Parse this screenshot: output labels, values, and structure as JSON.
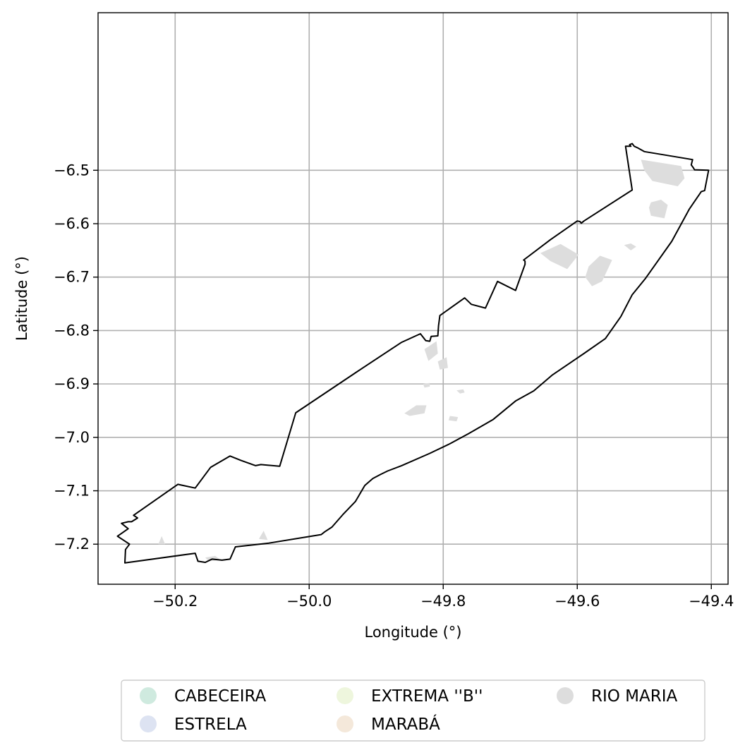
{
  "chart_data": {
    "type": "map",
    "xlabel": "Longitude (°)",
    "ylabel": "Latitude (°)",
    "xlim": [
      -50.315,
      -49.375
    ],
    "ylim": [
      -7.275,
      -6.205
    ],
    "xticks": [
      -50.2,
      -50.0,
      -49.8,
      -49.6,
      -49.4
    ],
    "xtick_labels": [
      "−50.2",
      "−50.0",
      "−49.8",
      "−49.6",
      "−49.4"
    ],
    "yticks": [
      -6.5,
      -6.6,
      -6.7,
      -6.8,
      -6.9,
      -7.0,
      -7.1,
      -7.2
    ],
    "ytick_labels": [
      "−6.5",
      "−6.6",
      "−6.7",
      "−6.8",
      "−6.9",
      "−7.0",
      "−7.1",
      "−7.2"
    ],
    "grid": true,
    "legend_position": "bottom",
    "legend": [
      {
        "name": "CABECEIRA",
        "color": "#cfeadf"
      },
      {
        "name": "ESTRELA",
        "color": "#dde3f2"
      },
      {
        "name": "EXTREMA ''B''",
        "color": "#eef6dd"
      },
      {
        "name": "MARABÁ",
        "color": "#f4e8da"
      },
      {
        "name": "RIO MARIA",
        "color": "#dddddd"
      }
    ],
    "boundary": [
      [
        -50.275,
        -7.235
      ],
      [
        -50.17,
        -7.217
      ],
      [
        -50.166,
        -7.232
      ],
      [
        -50.155,
        -7.234
      ],
      [
        -50.145,
        -7.228
      ],
      [
        -50.13,
        -7.23
      ],
      [
        -50.118,
        -7.228
      ],
      [
        -50.11,
        -7.205
      ],
      [
        -50.06,
        -7.198
      ],
      [
        -49.982,
        -7.182
      ],
      [
        -49.977,
        -7.177
      ],
      [
        -49.966,
        -7.168
      ],
      [
        -49.95,
        -7.145
      ],
      [
        -49.931,
        -7.12
      ],
      [
        -49.917,
        -7.09
      ],
      [
        -49.905,
        -7.077
      ],
      [
        -49.893,
        -7.069
      ],
      [
        -49.883,
        -7.063
      ],
      [
        -49.862,
        -7.053
      ],
      [
        -49.82,
        -7.03
      ],
      [
        -49.79,
        -7.012
      ],
      [
        -49.762,
        -6.993
      ],
      [
        -49.726,
        -6.967
      ],
      [
        -49.692,
        -6.932
      ],
      [
        -49.665,
        -6.913
      ],
      [
        -49.637,
        -6.883
      ],
      [
        -49.59,
        -6.843
      ],
      [
        -49.558,
        -6.815
      ],
      [
        -49.535,
        -6.774
      ],
      [
        -49.518,
        -6.733
      ],
      [
        -49.498,
        -6.702
      ],
      [
        -49.459,
        -6.633
      ],
      [
        -49.433,
        -6.573
      ],
      [
        -49.415,
        -6.54
      ],
      [
        -49.41,
        -6.538
      ],
      [
        -49.404,
        -6.5
      ],
      [
        -49.425,
        -6.499
      ],
      [
        -49.427,
        -6.495
      ],
      [
        -49.43,
        -6.49
      ],
      [
        -49.428,
        -6.48
      ],
      [
        -49.5,
        -6.465
      ],
      [
        -49.51,
        -6.458
      ],
      [
        -49.515,
        -6.455
      ],
      [
        -49.518,
        -6.45
      ],
      [
        -49.522,
        -6.452
      ],
      [
        -49.52,
        -6.455
      ],
      [
        -49.528,
        -6.455
      ],
      [
        -49.518,
        -6.537
      ],
      [
        -49.59,
        -6.595
      ],
      [
        -49.594,
        -6.599
      ],
      [
        -49.596,
        -6.596
      ],
      [
        -49.6,
        -6.595
      ],
      [
        -49.64,
        -6.63
      ],
      [
        -49.68,
        -6.668
      ],
      [
        -49.678,
        -6.67
      ],
      [
        -49.678,
        -6.676
      ],
      [
        -49.692,
        -6.725
      ],
      [
        -49.719,
        -6.708
      ],
      [
        -49.737,
        -6.758
      ],
      [
        -49.758,
        -6.751
      ],
      [
        -49.768,
        -6.739
      ],
      [
        -49.805,
        -6.772
      ],
      [
        -49.807,
        -6.791
      ],
      [
        -49.808,
        -6.81
      ],
      [
        -49.818,
        -6.811
      ],
      [
        -49.82,
        -6.82
      ],
      [
        -49.826,
        -6.819
      ],
      [
        -49.834,
        -6.806
      ],
      [
        -49.862,
        -6.822
      ],
      [
        -49.92,
        -6.87
      ],
      [
        -50.02,
        -6.954
      ],
      [
        -50.044,
        -7.054
      ],
      [
        -50.072,
        -7.051
      ],
      [
        -50.08,
        -7.053
      ],
      [
        -50.102,
        -7.043
      ],
      [
        -50.118,
        -7.035
      ],
      [
        -50.147,
        -7.056
      ],
      [
        -50.17,
        -7.095
      ],
      [
        -50.196,
        -7.088
      ],
      [
        -50.262,
        -7.146
      ],
      [
        -50.256,
        -7.151
      ],
      [
        -50.265,
        -7.158
      ],
      [
        -50.27,
        -7.158
      ],
      [
        -50.28,
        -7.161
      ],
      [
        -50.27,
        -7.171
      ],
      [
        -50.286,
        -7.185
      ],
      [
        -50.268,
        -7.2
      ],
      [
        -50.274,
        -7.21
      ],
      [
        -50.275,
        -7.235
      ]
    ],
    "areas": [
      {
        "category": "RIO MARIA",
        "coords": [
          [
            -49.505,
            -6.48
          ],
          [
            -49.445,
            -6.492
          ],
          [
            -49.44,
            -6.515
          ],
          [
            -49.45,
            -6.53
          ],
          [
            -49.488,
            -6.52
          ],
          [
            -49.5,
            -6.5
          ]
        ]
      },
      {
        "category": "RIO MARIA",
        "coords": [
          [
            -49.49,
            -6.56
          ],
          [
            -49.475,
            -6.555
          ],
          [
            -49.465,
            -6.565
          ],
          [
            -49.47,
            -6.59
          ],
          [
            -49.49,
            -6.585
          ],
          [
            -49.493,
            -6.57
          ]
        ]
      },
      {
        "category": "RIO MARIA",
        "coords": [
          [
            -49.53,
            -6.64
          ],
          [
            -49.52,
            -6.637
          ],
          [
            -49.512,
            -6.643
          ],
          [
            -49.52,
            -6.65
          ]
        ]
      },
      {
        "category": "RIO MARIA",
        "coords": [
          [
            -49.655,
            -6.655
          ],
          [
            -49.625,
            -6.638
          ],
          [
            -49.598,
            -6.658
          ],
          [
            -49.615,
            -6.685
          ],
          [
            -49.64,
            -6.67
          ]
        ]
      },
      {
        "category": "RIO MARIA",
        "coords": [
          [
            -49.583,
            -6.68
          ],
          [
            -49.566,
            -6.66
          ],
          [
            -49.548,
            -6.668
          ],
          [
            -49.563,
            -6.708
          ],
          [
            -49.578,
            -6.717
          ],
          [
            -49.588,
            -6.7
          ]
        ]
      },
      {
        "category": "RIO MARIA",
        "coords": [
          [
            -49.828,
            -6.835
          ],
          [
            -49.81,
            -6.82
          ],
          [
            -49.808,
            -6.843
          ],
          [
            -49.822,
            -6.857
          ]
        ]
      },
      {
        "category": "RIO MARIA",
        "coords": [
          [
            -49.808,
            -6.858
          ],
          [
            -49.795,
            -6.85
          ],
          [
            -49.793,
            -6.87
          ],
          [
            -49.805,
            -6.873
          ]
        ]
      },
      {
        "category": "RIO MARIA",
        "coords": [
          [
            -49.858,
            -6.955
          ],
          [
            -49.84,
            -6.94
          ],
          [
            -49.825,
            -6.94
          ],
          [
            -49.828,
            -6.955
          ],
          [
            -49.85,
            -6.96
          ]
        ]
      },
      {
        "category": "RIO MARIA",
        "coords": [
          [
            -49.83,
            -6.9
          ],
          [
            -49.82,
            -6.898
          ],
          [
            -49.82,
            -6.905
          ],
          [
            -49.828,
            -6.907
          ]
        ]
      },
      {
        "category": "RIO MARIA",
        "coords": [
          [
            -50.155,
            -7.225
          ],
          [
            -50.14,
            -7.222
          ],
          [
            -50.132,
            -7.23
          ],
          [
            -50.15,
            -7.232
          ]
        ]
      },
      {
        "category": "RIO MARIA",
        "coords": [
          [
            -50.075,
            -7.19
          ],
          [
            -50.068,
            -7.175
          ],
          [
            -50.062,
            -7.192
          ]
        ]
      },
      {
        "category": "RIO MARIA",
        "coords": [
          [
            -50.225,
            -7.2
          ],
          [
            -50.22,
            -7.185
          ],
          [
            -50.215,
            -7.2
          ]
        ]
      },
      {
        "category": "RIO MARIA",
        "coords": [
          [
            -49.78,
            -6.912
          ],
          [
            -49.77,
            -6.91
          ],
          [
            -49.768,
            -6.916
          ],
          [
            -49.775,
            -6.918
          ]
        ]
      },
      {
        "category": "RIO MARIA",
        "coords": [
          [
            -49.79,
            -6.96
          ],
          [
            -49.778,
            -6.962
          ],
          [
            -49.78,
            -6.97
          ],
          [
            -49.792,
            -6.968
          ]
        ]
      }
    ]
  }
}
